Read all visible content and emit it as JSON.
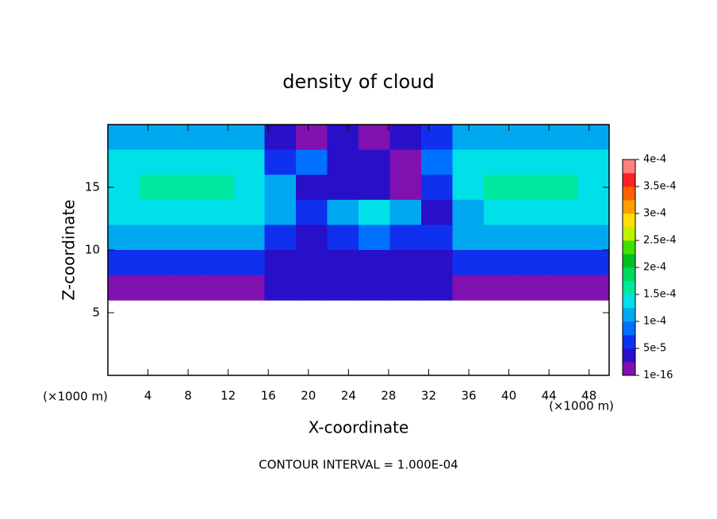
{
  "chart_data": {
    "type": "contour",
    "title": "density of cloud",
    "xlabel": "X-coordinate",
    "ylabel": "Z-coordinate",
    "xunit": "(×1000 m)",
    "yunit": "(×1000 m)",
    "note": "CONTOUR INTERVAL = 1.000E-04",
    "xlim": [
      0,
      50
    ],
    "ylim": [
      0,
      20
    ],
    "xticks": [
      4,
      8,
      12,
      16,
      20,
      24,
      28,
      32,
      36,
      40,
      44,
      48
    ],
    "yticks": [
      5,
      10,
      15
    ],
    "field": {
      "x": [
        1.56,
        4.69,
        7.81,
        10.94,
        14.06,
        17.19,
        20.31,
        23.44,
        26.56,
        29.69,
        32.81,
        35.94,
        39.06,
        42.19,
        45.31,
        48.44
      ],
      "z": [
        19,
        17,
        15,
        13,
        11,
        9,
        7,
        5,
        3,
        1
      ],
      "values": [
        [
          0.00011,
          0.000115,
          0.000115,
          0.000115,
          0.00011,
          4e-05,
          2e-05,
          3e-05,
          2e-05,
          4e-05,
          6e-05,
          0.00011,
          0.000115,
          0.000115,
          0.000115,
          0.00011
        ],
        [
          0.00013,
          0.000135,
          0.000135,
          0.000135,
          0.00013,
          7e-05,
          8e-05,
          4e-05,
          3e-05,
          2e-05,
          9e-05,
          0.00013,
          0.000135,
          0.000135,
          0.000135,
          0.00013
        ],
        [
          0.00015,
          0.000155,
          0.000155,
          0.000155,
          0.00015,
          0.00012,
          5e-05,
          4e-05,
          3e-05,
          2e-05,
          6e-05,
          0.00014,
          0.000155,
          0.000155,
          0.000155,
          0.00015
        ],
        [
          0.000145,
          0.00015,
          0.00015,
          0.00015,
          0.000145,
          0.00011,
          6e-05,
          0.00011,
          0.00013,
          0.00012,
          5e-05,
          0.00011,
          0.000145,
          0.00015,
          0.00015,
          0.000145
        ],
        [
          0.00012,
          0.000125,
          0.000125,
          0.000125,
          0.00012,
          6e-05,
          5e-05,
          6e-05,
          8e-05,
          7e-05,
          6e-05,
          0.00012,
          0.000125,
          0.000125,
          0.000125,
          0.00012
        ],
        [
          7e-05,
          7e-05,
          7e-05,
          7e-05,
          7e-05,
          5e-05,
          4e-05,
          4e-05,
          5e-05,
          5e-05,
          4e-05,
          7e-05,
          7e-05,
          7e-05,
          7e-05,
          7e-05
        ],
        [
          2e-05,
          2e-05,
          2e-05,
          2e-05,
          2e-05,
          3e-05,
          3e-05,
          3e-05,
          3e-05,
          3e-05,
          3e-05,
          2e-05,
          2e-05,
          2e-05,
          2e-05,
          2e-05
        ],
        [
          null,
          null,
          null,
          null,
          null,
          null,
          null,
          null,
          null,
          null,
          null,
          null,
          null,
          null,
          null,
          null
        ],
        [
          null,
          null,
          null,
          null,
          null,
          null,
          null,
          null,
          null,
          null,
          null,
          null,
          null,
          null,
          null,
          null
        ],
        [
          null,
          null,
          null,
          null,
          null,
          null,
          null,
          null,
          null,
          null,
          null,
          null,
          null,
          null,
          null,
          null
        ]
      ]
    },
    "colorbar": {
      "lim": [
        1e-16,
        0.0004
      ],
      "ticks": [
        {
          "value": 1e-16,
          "label": "1e-16"
        },
        {
          "value": 5e-05,
          "label": "5e-5"
        },
        {
          "value": 0.0001,
          "label": "1e-4"
        },
        {
          "value": 0.00015,
          "label": "1.5e-4"
        },
        {
          "value": 0.0002,
          "label": "2e-4"
        },
        {
          "value": 0.00025,
          "label": "2.5e-4"
        },
        {
          "value": 0.0003,
          "label": "3e-4"
        },
        {
          "value": 0.00035,
          "label": "3.5e-4"
        },
        {
          "value": 0.0004,
          "label": "4e-4"
        }
      ],
      "colors": [
        "#8010b0",
        "#2810c8",
        "#1030f0",
        "#0070ff",
        "#00a8f0",
        "#00e0e8",
        "#00e8a0",
        "#00d860",
        "#00c020",
        "#40e000",
        "#c0f000",
        "#ffe000",
        "#ffa000",
        "#ff6000",
        "#ff2020",
        "#ff8080"
      ]
    }
  }
}
